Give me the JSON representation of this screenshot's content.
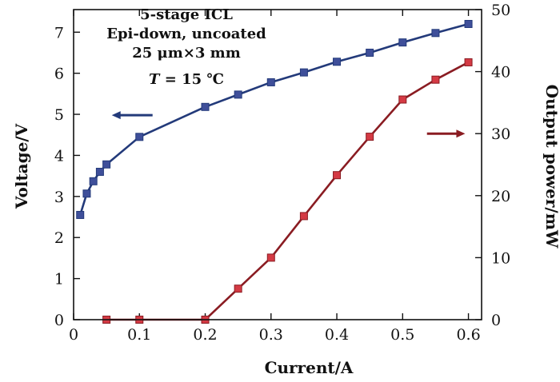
{
  "chart_data": {
    "type": "line",
    "xlabel": "Current/A",
    "ylabel_left": "Voltage/V",
    "ylabel_right": "Output power/mW",
    "xlim": [
      0,
      0.62
    ],
    "ylim_left": [
      0,
      7.55
    ],
    "ylim_right": [
      0,
      50
    ],
    "x_ticks": [
      0,
      0.1,
      0.2,
      0.3,
      0.4,
      0.5,
      0.6
    ],
    "x_tick_labels": [
      "0",
      "0.1",
      "0.2",
      "0.3",
      "0.4",
      "0.5",
      "0.6"
    ],
    "y_left_ticks": [
      0,
      1,
      2,
      3,
      4,
      5,
      6,
      7
    ],
    "y_left_tick_labels": [
      "0",
      "1",
      "2",
      "3",
      "4",
      "5",
      "6",
      "7"
    ],
    "y_right_ticks": [
      0,
      10,
      20,
      30,
      40,
      50
    ],
    "y_right_tick_labels": [
      "0",
      "10",
      "20",
      "30",
      "40",
      "50"
    ],
    "annotation": {
      "line1": "5-stage ICL",
      "line2": "Epi-down, uncoated",
      "line3": "25 μm×3 mm",
      "line4_italic": "T",
      "line4_rest": " = 15 ℃"
    },
    "series": [
      {
        "name": "Voltage",
        "axis": "left",
        "color": "#233a7a",
        "marker_color": "#3f4f9a",
        "x": [
          0.01,
          0.02,
          0.03,
          0.04,
          0.05,
          0.1,
          0.2,
          0.25,
          0.3,
          0.35,
          0.4,
          0.45,
          0.5,
          0.55,
          0.6
        ],
        "y": [
          2.55,
          3.07,
          3.37,
          3.6,
          3.78,
          4.45,
          5.18,
          5.48,
          5.78,
          6.02,
          6.28,
          6.5,
          6.75,
          6.98,
          7.2
        ]
      },
      {
        "name": "Output power",
        "axis": "right",
        "color": "#8a1c22",
        "marker_color": "#d43a44",
        "x": [
          0.05,
          0.1,
          0.2,
          0.25,
          0.3,
          0.35,
          0.4,
          0.45,
          0.5,
          0.55,
          0.6
        ],
        "y": [
          0,
          0,
          0,
          5,
          10,
          16.7,
          23.3,
          29.5,
          35.5,
          38.7,
          41.5
        ]
      }
    ],
    "arrows": [
      {
        "series": "Voltage",
        "direction": "left"
      },
      {
        "series": "Output power",
        "direction": "right"
      }
    ]
  }
}
